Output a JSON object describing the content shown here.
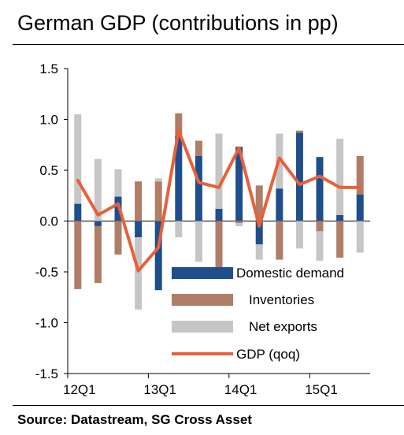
{
  "title": "German GDP (contributions in pp)",
  "source": "Source: Datastream, SG Cross Asset",
  "colors": {
    "domestic": "#1f4e8c",
    "inventories": "#b07d67",
    "net_exports": "#c6c6c6",
    "gdp": "#e8603a",
    "axis": "#000000"
  },
  "chart_data": {
    "type": "bar",
    "stacked": true,
    "title": "German GDP (contributions in pp)",
    "ylim": [
      -1.5,
      1.5
    ],
    "yticks": [
      1.5,
      1.0,
      0.5,
      0.0,
      -0.5,
      -1.0,
      -1.5
    ],
    "ytick_labels": [
      "1.5",
      "1.0",
      "0.5",
      "0.0",
      "-0.5",
      "-1.0",
      "-1.5"
    ],
    "xtick_labels": [
      "12Q1",
      "13Q1",
      "14Q1",
      "15Q1"
    ],
    "categories": [
      "12Q1",
      "12Q2",
      "12Q3",
      "12Q4",
      "13Q1",
      "13Q2",
      "13Q3",
      "13Q4",
      "14Q1",
      "14Q2",
      "14Q3",
      "14Q4",
      "15Q1",
      "15Q2",
      "15Q3"
    ],
    "grid": false,
    "legend_position": "bottom-right",
    "series": [
      {
        "name": "Domestic demand",
        "kind": "bar",
        "values": [
          0.17,
          -0.05,
          0.24,
          -0.16,
          -0.68,
          0.84,
          0.64,
          0.12,
          0.73,
          -0.23,
          0.32,
          0.87,
          0.63,
          0.06,
          0.26
        ]
      },
      {
        "name": "Inventories",
        "kind": "bar",
        "values": [
          -0.67,
          -0.56,
          -0.33,
          0.39,
          0.39,
          0.22,
          0.15,
          -0.5,
          -0.02,
          0.35,
          -0.38,
          0.02,
          -0.1,
          -0.36,
          0.38
        ]
      },
      {
        "name": "Net exports",
        "kind": "bar",
        "values": [
          0.88,
          0.61,
          0.27,
          -0.71,
          0.03,
          -0.16,
          -0.4,
          0.74,
          -0.03,
          -0.15,
          0.54,
          -0.27,
          -0.29,
          0.75,
          -0.31
        ]
      },
      {
        "name": "GDP (qoq)",
        "kind": "line",
        "values": [
          0.4,
          0.06,
          0.17,
          -0.49,
          -0.26,
          0.89,
          0.38,
          0.33,
          0.72,
          -0.05,
          0.62,
          0.36,
          0.44,
          0.33,
          0.33
        ]
      }
    ]
  }
}
